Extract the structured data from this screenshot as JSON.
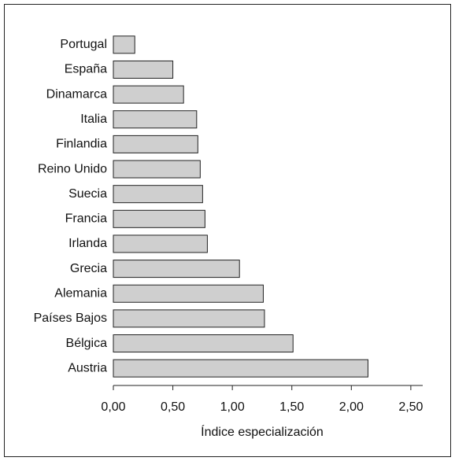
{
  "chart_data": {
    "type": "barh",
    "x_label": "Índice especialización",
    "categories": [
      "Portugal",
      "España",
      "Dinamarca",
      "Italia",
      "Finlandia",
      "Reino Unido",
      "Suecia",
      "Francia",
      "Irlanda",
      "Grecia",
      "Alemania",
      "Países Bajos",
      "Bélgica",
      "Austria"
    ],
    "values": [
      0.18,
      0.5,
      0.59,
      0.7,
      0.71,
      0.73,
      0.75,
      0.77,
      0.79,
      1.06,
      1.26,
      1.27,
      1.51,
      2.14
    ],
    "color": "#cfcfcf",
    "xlim": [
      0,
      2.6
    ],
    "xticks": [
      {
        "value": 0,
        "label": "0,00"
      },
      {
        "value": 0.5,
        "label": "0,50"
      },
      {
        "value": 1,
        "label": "1,00"
      },
      {
        "value": 1.5,
        "label": "1,50"
      },
      {
        "value": 2,
        "label": "2,00"
      },
      {
        "value": 2.5,
        "label": "2,50"
      }
    ],
    "grid": false
  }
}
